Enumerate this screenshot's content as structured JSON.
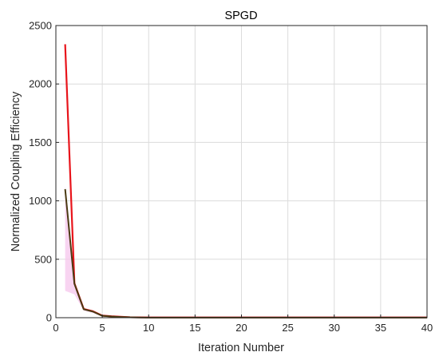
{
  "chart_data": {
    "type": "line",
    "title": "SPGD",
    "xlabel": "Iteration Number",
    "ylabel": "Normalized Coupling Efficiency",
    "xlim": [
      0,
      40
    ],
    "ylim": [
      0,
      2500
    ],
    "xticks": [
      0,
      5,
      10,
      15,
      20,
      25,
      30,
      35,
      40
    ],
    "yticks": [
      0,
      500,
      1000,
      1500,
      2000,
      2500
    ],
    "grid": true,
    "legend": "none",
    "series": [
      {
        "color": "#e8141b",
        "x": [
          1,
          2,
          3,
          4,
          5,
          6,
          7,
          8,
          9,
          10,
          11,
          12,
          13,
          14,
          15,
          16,
          17,
          18,
          19,
          20,
          21,
          22,
          23,
          24,
          25,
          26,
          27,
          28,
          29,
          30,
          31,
          32,
          33,
          34,
          35,
          36,
          37,
          38,
          39,
          40
        ],
        "y": [
          2340,
          295,
          75,
          55,
          18,
          12,
          8,
          4,
          3,
          2,
          2,
          2,
          2,
          2,
          2,
          2,
          2,
          2,
          2,
          2,
          2,
          2,
          2,
          2,
          2,
          2,
          2,
          2,
          2,
          2,
          2,
          2,
          2,
          2,
          2,
          2,
          2,
          2,
          2,
          2
        ]
      },
      {
        "color": "#4a3a12",
        "x": [
          1,
          2,
          3,
          4,
          5,
          6,
          7,
          8,
          9,
          10,
          11,
          12,
          13,
          14,
          15,
          16,
          17,
          18,
          19,
          20,
          21,
          22,
          23,
          24,
          25,
          26,
          27,
          28,
          29,
          30,
          31,
          32,
          33,
          34,
          35,
          36,
          37,
          38,
          39,
          40
        ],
        "y": [
          1100,
          290,
          72,
          52,
          16,
          10,
          6,
          3,
          2,
          1,
          1,
          1,
          1,
          1,
          1,
          1,
          1,
          1,
          1,
          1,
          1,
          1,
          1,
          1,
          1,
          1,
          1,
          1,
          1,
          1,
          1,
          1,
          1,
          1,
          1,
          1,
          1,
          1,
          1,
          1
        ]
      }
    ],
    "band": {
      "color": "#f5c6ec",
      "x": [
        1,
        2,
        3,
        4,
        5,
        6,
        7,
        8,
        10,
        15,
        20,
        25,
        30,
        35,
        40
      ],
      "upper": [
        1130,
        300,
        80,
        58,
        22,
        16,
        12,
        10,
        10,
        10,
        10,
        10,
        10,
        10,
        10
      ],
      "lower": [
        230,
        200,
        60,
        40,
        8,
        4,
        2,
        0,
        0,
        0,
        0,
        0,
        0,
        0,
        0
      ]
    }
  }
}
